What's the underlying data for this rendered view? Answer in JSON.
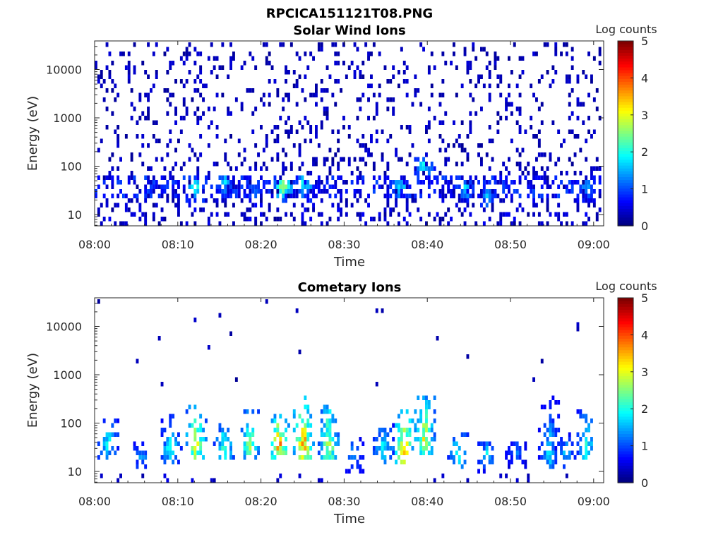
{
  "figure": {
    "title": "RPCICA151121T08.PNG"
  },
  "chart_data": [
    {
      "type": "heatmap",
      "title": "Solar Wind Ions",
      "xlabel": "Time",
      "ylabel": "Energy (eV)",
      "x_ticks": [
        "08:00",
        "08:10",
        "08:20",
        "08:30",
        "08:40",
        "08:50",
        "09:00"
      ],
      "y_ticks": [
        "10",
        "100",
        "1000",
        "10000"
      ],
      "y_scale": "log",
      "y_range_eV": [
        6,
        45000
      ],
      "x_range_min": [
        0,
        61
      ],
      "colorbar": {
        "label": "Log counts",
        "ticks": [
          "0",
          "1",
          "2",
          "3",
          "4",
          "5"
        ],
        "range": [
          0,
          5
        ]
      },
      "features": {
        "background_level_log_counts": 0.3,
        "low_energy_band_eV": [
          20,
          60
        ],
        "bursts": [
          {
            "t_min": 12,
            "E_eV": 38,
            "level": 2.0
          },
          {
            "t_min": 15.5,
            "E_eV": 45,
            "level": 1.7
          },
          {
            "t_min": 19,
            "E_eV": 32,
            "level": 1.3
          },
          {
            "t_min": 22.5,
            "E_eV": 38,
            "level": 2.6
          },
          {
            "t_min": 25,
            "E_eV": 42,
            "level": 2.1
          },
          {
            "t_min": 36.5,
            "E_eV": 40,
            "level": 2.0
          },
          {
            "t_min": 39.5,
            "E_eV": 100,
            "level": 1.9
          },
          {
            "t_min": 44.5,
            "E_eV": 35,
            "level": 1.8
          },
          {
            "t_min": 47,
            "E_eV": 24,
            "level": 1.5
          },
          {
            "t_min": 59,
            "E_eV": 35,
            "level": 1.5
          }
        ]
      }
    },
    {
      "type": "heatmap",
      "title": "Cometary Ions",
      "xlabel": "Time",
      "ylabel": "Energy (eV)",
      "x_ticks": [
        "08:00",
        "08:10",
        "08:20",
        "08:30",
        "08:40",
        "08:50",
        "09:00"
      ],
      "y_ticks": [
        "10",
        "100",
        "1000",
        "10000"
      ],
      "y_scale": "log",
      "y_range_eV": [
        6,
        45000
      ],
      "x_range_min": [
        0,
        61
      ],
      "colorbar": {
        "label": "Log counts",
        "ticks": [
          "0",
          "1",
          "2",
          "3",
          "4",
          "5"
        ],
        "range": [
          0,
          5
        ]
      },
      "features": {
        "background_level_log_counts": 0.2,
        "bursts": [
          {
            "t_min": 1.5,
            "E_eV": 40,
            "top_eV": 120,
            "level": 2.0
          },
          {
            "t_min": 5.5,
            "E_eV": 20,
            "top_eV": 40,
            "level": 1.5
          },
          {
            "t_min": 9,
            "E_eV": 30,
            "top_eV": 150,
            "level": 2.0
          },
          {
            "t_min": 12,
            "E_eV": 38,
            "top_eV": 250,
            "level": 3.0
          },
          {
            "t_min": 15.5,
            "E_eV": 35,
            "top_eV": 120,
            "level": 2.3
          },
          {
            "t_min": 18.5,
            "E_eV": 38,
            "top_eV": 200,
            "level": 2.6
          },
          {
            "t_min": 22,
            "E_eV": 38,
            "top_eV": 150,
            "level": 3.8
          },
          {
            "t_min": 25,
            "E_eV": 40,
            "top_eV": 400,
            "level": 3.5
          },
          {
            "t_min": 28,
            "E_eV": 35,
            "top_eV": 400,
            "level": 2.8
          },
          {
            "t_min": 31,
            "E_eV": 22,
            "top_eV": 50,
            "level": 1.5
          },
          {
            "t_min": 34.5,
            "E_eV": 30,
            "top_eV": 100,
            "level": 2.0
          },
          {
            "t_min": 37,
            "E_eV": 30,
            "top_eV": 200,
            "level": 3.6
          },
          {
            "t_min": 39.5,
            "E_eV": 45,
            "top_eV": 500,
            "level": 3.0
          },
          {
            "t_min": 43.5,
            "E_eV": 25,
            "top_eV": 70,
            "level": 2.2
          },
          {
            "t_min": 47,
            "E_eV": 22,
            "top_eV": 40,
            "level": 1.8
          },
          {
            "t_min": 50.5,
            "E_eV": 25,
            "top_eV": 40,
            "level": 1.3
          },
          {
            "t_min": 54.5,
            "E_eV": 25,
            "top_eV": 400,
            "level": 1.7
          },
          {
            "t_min": 56.5,
            "E_eV": 25,
            "top_eV": 60,
            "level": 1.6
          },
          {
            "t_min": 59,
            "E_eV": 35,
            "top_eV": 200,
            "level": 2.1
          }
        ]
      }
    }
  ]
}
